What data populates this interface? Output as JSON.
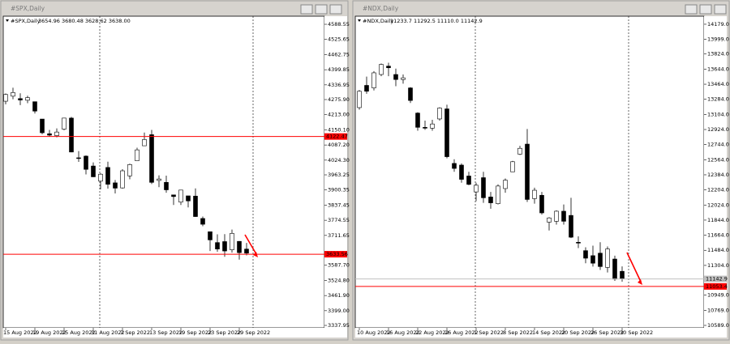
{
  "chart_data": [
    {
      "type": "candlestick",
      "window_title": "#SPX,Daily",
      "title": "#SPX,Daily",
      "info": "3654.96 3680.48 3628.62 3638.00",
      "categories": [
        "15 Aug 2022",
        null,
        null,
        null,
        "19 Aug 2022",
        null,
        null,
        null,
        "25 Aug 2022",
        null,
        null,
        null,
        "31 Aug 2022",
        null,
        null,
        null,
        "7 Sep 2022",
        null,
        null,
        null,
        "13 Sep 2022",
        null,
        null,
        null,
        "19 Sep 2022",
        null,
        null,
        null,
        "23 Sep 2022",
        null,
        null,
        null,
        "29 Sep 2022",
        null
      ],
      "open": [
        4269,
        4290,
        4280,
        4273,
        4267,
        4195,
        4134,
        4126,
        4153,
        4199,
        4034,
        4041,
        4000,
        3937,
        3994,
        3930,
        3909,
        3959,
        4022,
        4084,
        4130,
        3940,
        3932,
        3880,
        3850,
        3876,
        3875,
        3782,
        3727,
        3682,
        3686,
        3652,
        3687,
        3654.96
      ],
      "high": [
        4301,
        4325,
        4302,
        4292,
        4267,
        4195,
        4150,
        4156,
        4200,
        4204,
        4062,
        4044,
        4015,
        3970,
        4018,
        3942,
        3987,
        4010,
        4076,
        4139,
        4150,
        3961,
        3960,
        3880,
        3900,
        3876,
        3907,
        3790,
        3727,
        3716,
        3717,
        3736,
        3688,
        3680.48
      ],
      "low": [
        4256,
        4277,
        4253,
        4261,
        4218,
        4132,
        4123,
        4119,
        4148,
        4057,
        4017,
        3965,
        3954,
        3903,
        3906,
        3886,
        3906,
        3945,
        4022,
        4084,
        3925,
        3912,
        3889,
        3838,
        3838,
        3828,
        3789,
        3750,
        3647,
        3644,
        3623,
        3640,
        3611,
        3628.62
      ],
      "close": [
        4297,
        4305,
        4274,
        4284,
        4228,
        4138,
        4128,
        4141,
        4199,
        4058,
        4031,
        3986,
        3955,
        3966,
        3924,
        3908,
        3980,
        4006,
        4067,
        4110,
        3932,
        3946,
        3901,
        3873,
        3900,
        3855,
        3790,
        3758,
        3693,
        3655,
        3647,
        3720,
        3640,
        3638.0
      ],
      "up_color": "#ffffff",
      "down_color": "#000000",
      "ylim": [
        3327.9,
        4622.2
      ],
      "yticks": [
        4588.55,
        4525.65,
        4462.75,
        4399.85,
        4336.95,
        {
          "value": 4275.9,
          "label": "4275.90"
        },
        {
          "value": 4213,
          "label": "4213.00"
        },
        {
          "value": 4150.1,
          "label": "4150.10"
        },
        {
          "value": 4087.2,
          "label": "4087.20"
        },
        {
          "value": 4024.3,
          "label": "4024.30"
        },
        3963.25,
        3900.35,
        3837.45,
        3774.55,
        3711.65,
        {
          "value": 3587.7,
          "label": "3587.70"
        },
        {
          "value": 3524.8,
          "label": "3524.80"
        },
        {
          "value": 3461.9,
          "label": "3461.90"
        },
        {
          "value": 3399,
          "label": "3399.00"
        },
        3337.95
      ],
      "hlines": [
        {
          "value": 4122.47,
          "color": "#ff0000"
        },
        {
          "value": 3633.56,
          "color": "#ff0000"
        }
      ]
    },
    {
      "type": "candlestick",
      "window_title": "#NDX,Daily",
      "title": "#NDX,Daily",
      "info": "11233.7 11292.5 11110.0 11142.9",
      "categories": [
        "10 Aug 2022",
        null,
        null,
        null,
        "16 Aug 2022",
        null,
        null,
        null,
        "22 Aug 2022",
        null,
        null,
        null,
        "26 Aug 2022",
        null,
        null,
        null,
        "1 Sep 2022",
        null,
        null,
        null,
        "8 Sep 2022",
        null,
        null,
        null,
        "14 Sep 2022",
        null,
        null,
        null,
        "20 Sep 2022",
        null,
        null,
        null,
        "26 Sep 2022",
        null,
        null,
        null,
        "30 Sep 2022"
      ],
      "open": [
        13185,
        13450,
        13420,
        13580,
        13680,
        13580,
        13520,
        13420,
        13120,
        12950,
        12940,
        13050,
        13170,
        12520,
        12500,
        12370,
        12180,
        12350,
        12120,
        12040,
        12220,
        12420,
        12630,
        12750,
        12100,
        12140,
        11820,
        11830,
        11950,
        11900,
        11580,
        11480,
        11420,
        11450,
        11280,
        11380,
        11233.7
      ],
      "high": [
        13395,
        13555,
        13620,
        13710,
        13720,
        13650,
        13580,
        13430,
        13130,
        13030,
        13040,
        13190,
        13220,
        12570,
        12520,
        12420,
        12290,
        12420,
        12180,
        12270,
        12340,
        12550,
        12730,
        12930,
        12230,
        12180,
        11880,
        11960,
        12030,
        12110,
        11650,
        11520,
        11540,
        11580,
        11530,
        11420,
        11292.5
      ],
      "low": [
        13160,
        13350,
        13390,
        13560,
        13560,
        13440,
        13470,
        13240,
        12910,
        12920,
        12910,
        13030,
        12580,
        12420,
        12290,
        12260,
        12070,
        12050,
        11980,
        12030,
        12170,
        12420,
        12620,
        12060,
        12040,
        11910,
        11720,
        11790,
        11790,
        11630,
        11510,
        11330,
        11290,
        11250,
        11220,
        11120,
        11110
      ],
      "close": [
        13380,
        13380,
        13600,
        13700,
        13660,
        13520,
        13540,
        13270,
        12950,
        12940,
        12990,
        13180,
        12600,
        12460,
        12330,
        12270,
        12260,
        12110,
        12050,
        12250,
        12320,
        12540,
        12700,
        12090,
        12200,
        11930,
        11870,
        11950,
        11830,
        11640,
        11570,
        11390,
        11330,
        11290,
        11500,
        11140,
        11142.9
      ],
      "up_color": "#ffffff",
      "down_color": "#000000",
      "ylim": [
        10560,
        14275
      ],
      "yticks": [
        {
          "value": 14179,
          "label": "14179.0"
        },
        {
          "value": 13999,
          "label": "13999.0"
        },
        {
          "value": 13824,
          "label": "13824.0"
        },
        {
          "value": 13644,
          "label": "13644.0"
        },
        {
          "value": 13464,
          "label": "13464.0"
        },
        {
          "value": 13284,
          "label": "13284.0"
        },
        {
          "value": 13104,
          "label": "13104.0"
        },
        {
          "value": 12924,
          "label": "12924.0"
        },
        {
          "value": 12744,
          "label": "12744.0"
        },
        {
          "value": 12564,
          "label": "12564.0"
        },
        {
          "value": 12384,
          "label": "12384.0"
        },
        {
          "value": 12204,
          "label": "12204.0"
        },
        {
          "value": 12024,
          "label": "12024.0"
        },
        {
          "value": 11844,
          "label": "11844.0"
        },
        {
          "value": 11664,
          "label": "11664.0"
        },
        {
          "value": 11484,
          "label": "11484.0"
        },
        {
          "value": 11304,
          "label": "11304.0"
        },
        {
          "value": 10949,
          "label": "10949.0"
        },
        {
          "value": 10769,
          "label": "10769.0"
        },
        {
          "value": 10589,
          "label": "10589.0"
        }
      ],
      "hlines": [
        {
          "value": 11142.9,
          "color": "#c0c0c0"
        },
        {
          "value": 11053.4,
          "color": "#ff0000"
        }
      ]
    }
  ]
}
